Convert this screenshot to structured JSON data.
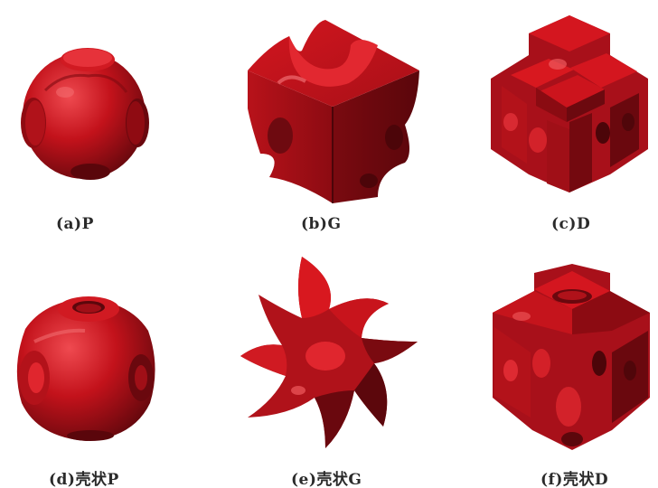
{
  "colors": {
    "surface": "#c8141c",
    "surface_dark": "#6e0a10",
    "surface_mid": "#a31018",
    "highlight": "#f05a5e"
  },
  "panels": [
    {
      "id": "a",
      "caption": "(a)P",
      "structure": "primitive-unit-cell"
    },
    {
      "id": "b",
      "caption": "(b)G",
      "structure": "gyroid-unit-cell"
    },
    {
      "id": "c",
      "caption": "(c)D",
      "structure": "diamond-unit-cell"
    },
    {
      "id": "d",
      "caption": "(d)壳状P",
      "structure": "primitive-shell"
    },
    {
      "id": "e",
      "caption": "(e)壳状G",
      "structure": "gyroid-shell"
    },
    {
      "id": "f",
      "caption": "(f)壳状D",
      "structure": "diamond-shell"
    }
  ]
}
